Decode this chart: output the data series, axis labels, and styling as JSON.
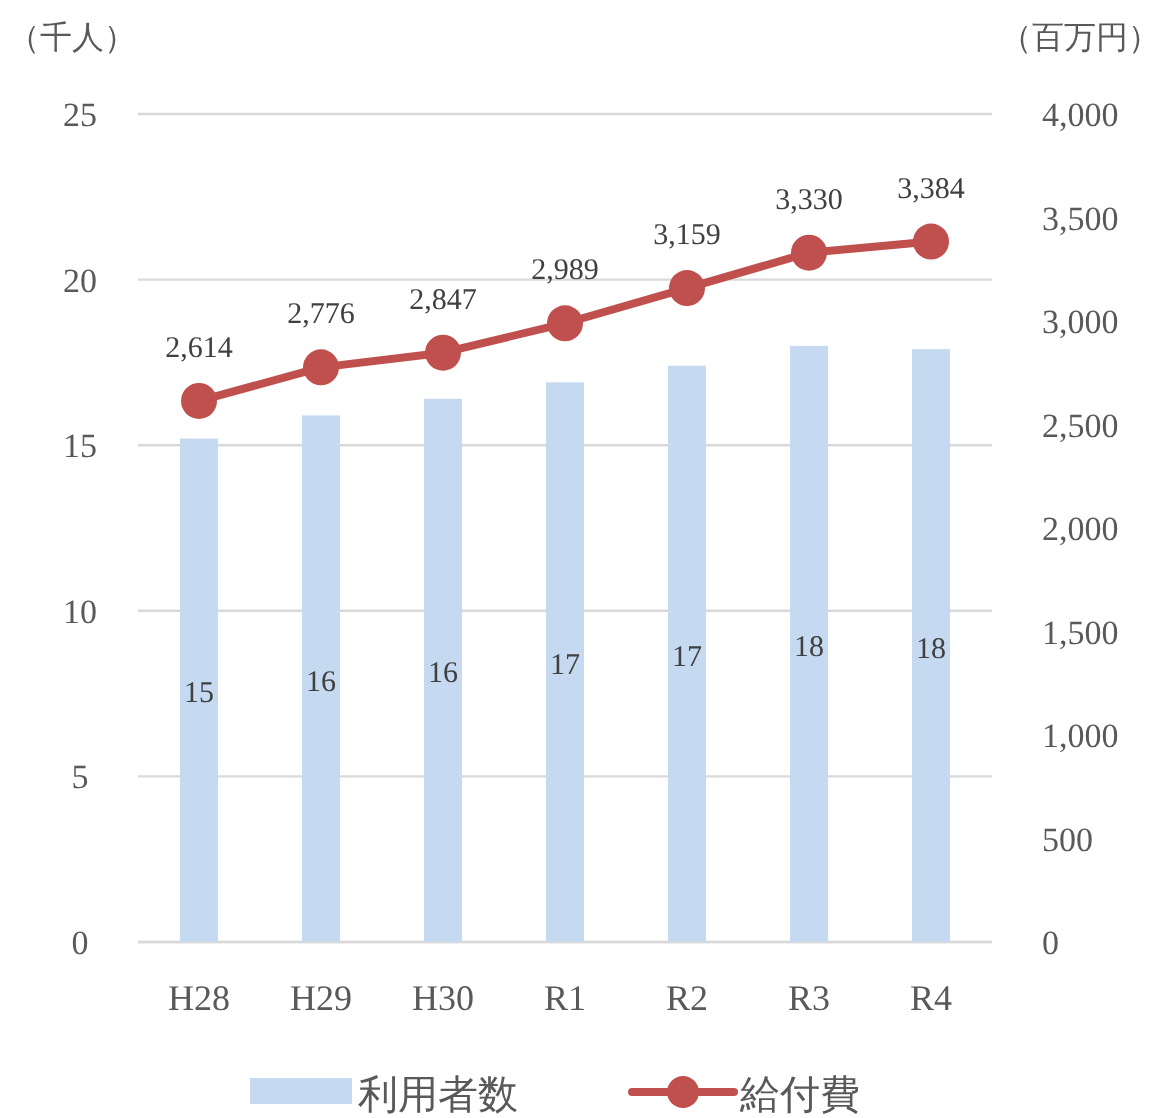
{
  "chart_data": {
    "type": "bar",
    "ylabel": "（千人）",
    "y2label": "（百万円）",
    "categories": [
      "H28",
      "H29",
      "H30",
      "R1",
      "R2",
      "R3",
      "R4"
    ],
    "series": [
      {
        "name": "利用者数",
        "color": "#c5d9f1",
        "values": [
          15.2,
          15.9,
          16.4,
          16.9,
          17.4,
          18.0,
          17.9
        ],
        "value_labels": [
          "15",
          "16",
          "16",
          "17",
          "17",
          "18",
          "18"
        ]
      },
      {
        "name": "給付費",
        "type": "line",
        "axis": "y2",
        "color": "#c0504d",
        "marker": "circle",
        "values": [
          2614,
          2776,
          2847,
          2989,
          3159,
          3330,
          3384
        ],
        "value_labels": [
          "2,614",
          "2,776",
          "2,847",
          "2,989",
          "3,159",
          "3,330",
          "3,384"
        ]
      }
    ],
    "ylim": [
      0,
      25
    ],
    "yticks": [
      0,
      5,
      10,
      15,
      20,
      25
    ],
    "y2lim": [
      0,
      4000
    ],
    "y2ticks": [
      0,
      500,
      {
        "value": 1000,
        "label": "1,000"
      },
      {
        "value": 1500,
        "label": "1,500"
      },
      {
        "value": 2000,
        "label": "2,000"
      },
      {
        "value": 2500,
        "label": "2,500"
      },
      {
        "value": 3000,
        "label": "3,000"
      },
      {
        "value": 3500,
        "label": "3,500"
      },
      {
        "value": 4000,
        "label": "4,000"
      }
    ],
    "grid": "y",
    "legend": "bottom"
  }
}
